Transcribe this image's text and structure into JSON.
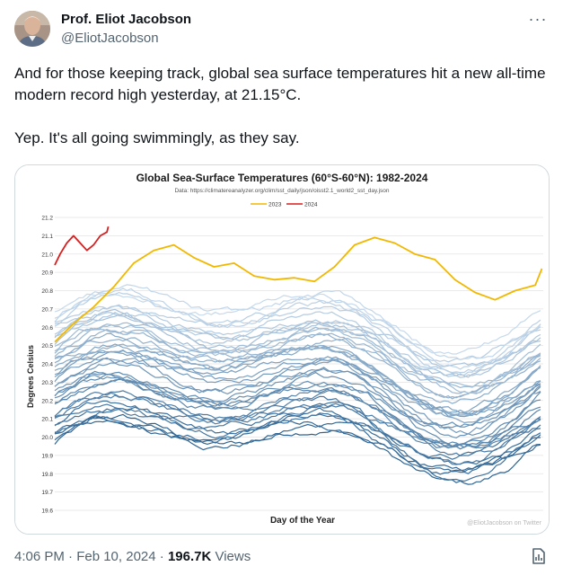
{
  "author": {
    "display_name": "Prof. Eliot Jacobson",
    "handle": "@EliotJacobson"
  },
  "tweet": {
    "paragraph_1": "And for those keeping track, global sea surface temperatures hit a new all-time modern record high yesterday, at 21.15°C.",
    "paragraph_2": "Yep. It's all going swimmingly, as they say."
  },
  "footer": {
    "timestamp": "4:06 PM · Feb 10, 2024 · ",
    "views_count": "196.7K",
    "views_label": " Views"
  },
  "icons": {
    "more": "more-icon",
    "analytics": "analytics-icon"
  },
  "colors": {
    "series_2023": "#f2b800",
    "series_2024": "#d81f1f",
    "historical_light": "#c6d9ec",
    "historical_dark": "#2e6594"
  },
  "chart_data": {
    "type": "line",
    "title": "Global Sea-Surface Temperatures (60°S-60°N): 1982-2024",
    "subtitle": "Data: https://climatereanalyzer.org/clim/sst_daily/json/oisst2.1_world2_sst_day.json",
    "xlabel": "Day of the Year",
    "ylabel": "Degrees Celsius",
    "ylim": [
      19.6,
      21.2
    ],
    "xlim": [
      1,
      366
    ],
    "y_ticks": [
      "21.2",
      "21.1",
      "21.0",
      "20.9",
      "20.8",
      "20.7",
      "20.6",
      "20.5",
      "20.4",
      "20.3",
      "20.2",
      "20.1",
      "20.0",
      "19.9",
      "19.8",
      "19.7",
      "19.6"
    ],
    "grid": true,
    "legend_position": "top-center",
    "watermark": "@EliotJacobson on Twitter",
    "series": [
      {
        "name": "2023",
        "x": [
          1,
          15,
          30,
          45,
          60,
          75,
          90,
          105,
          120,
          135,
          150,
          165,
          180,
          195,
          210,
          225,
          240,
          255,
          270,
          285,
          300,
          315,
          330,
          345,
          360,
          365
        ],
        "values": [
          20.52,
          20.62,
          20.71,
          20.82,
          20.95,
          21.02,
          21.05,
          20.98,
          20.93,
          20.95,
          20.88,
          20.86,
          20.87,
          20.85,
          20.93,
          21.05,
          21.09,
          21.06,
          21.0,
          20.97,
          20.86,
          20.79,
          20.75,
          20.8,
          20.83,
          20.92
        ]
      },
      {
        "name": "2024",
        "x": [
          1,
          5,
          10,
          15,
          20,
          25,
          30,
          35,
          40,
          41
        ],
        "values": [
          20.94,
          21.0,
          21.06,
          21.1,
          21.06,
          21.02,
          21.05,
          21.1,
          21.12,
          21.15
        ]
      }
    ],
    "historical_note": "1982-2022 (shaded blue, unlabeled)"
  }
}
